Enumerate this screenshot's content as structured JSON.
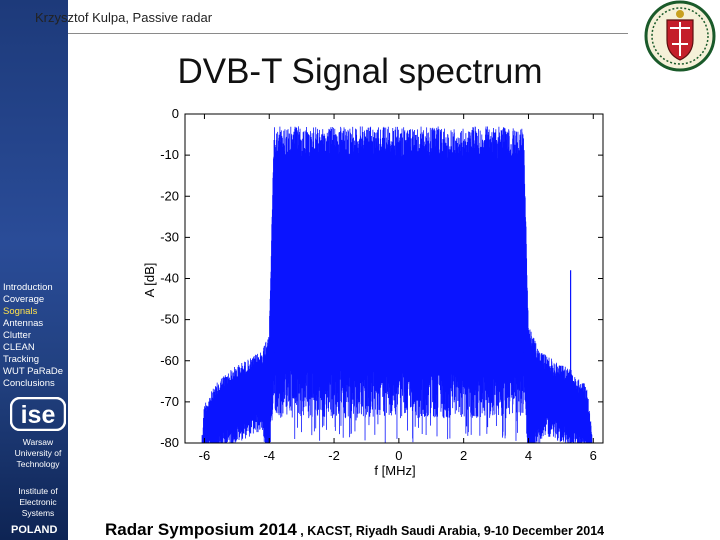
{
  "header": {
    "author_line": "Krzysztof  Kulpa, Passive radar"
  },
  "slide": {
    "title": "DVB-T Signal spectrum"
  },
  "sidebar": {
    "items": [
      {
        "label": "Introduction",
        "active": false
      },
      {
        "label": "Coverage",
        "active": false
      },
      {
        "label": "Sognals",
        "active": true
      },
      {
        "label": "Antennas",
        "active": false
      },
      {
        "label": "Clutter",
        "active": false
      },
      {
        "label": "CLEAN",
        "active": false
      },
      {
        "label": "Tracking",
        "active": false
      },
      {
        "label": "WUT PaRaDe",
        "active": false
      },
      {
        "label": "Conclusions",
        "active": false
      }
    ],
    "logo_text": "ise",
    "university": [
      "Warsaw",
      "University of",
      "Technology"
    ],
    "institute": [
      "Institute of",
      "Electronic",
      "Systems"
    ],
    "country": "POLAND"
  },
  "footer": {
    "event": "Radar Symposium 2014",
    "details": " , KACST, Riyadh  Saudi Arabia,  9-10 December 2014"
  },
  "colors": {
    "sidebar": "#2a4c98",
    "spectrum": "#0a14ff",
    "nav_active": "#ffe14d"
  },
  "chart_data": {
    "type": "line",
    "xlabel": "f [MHz]",
    "ylabel": "A [dB]",
    "xlim": [
      -6.6,
      6.3
    ],
    "ylim": [
      -80,
      0
    ],
    "xticks": [
      "-6",
      "-4",
      "-2",
      "0",
      "2",
      "4",
      "6"
    ],
    "yticks": [
      "0",
      "-10",
      "-20",
      "-30",
      "-40",
      "-50",
      "-60",
      "-70",
      "-80"
    ],
    "grid": false,
    "series": [
      {
        "envelope_top": [
          [
            -6.1,
            -80
          ],
          [
            -6.0,
            -70
          ],
          [
            -5.5,
            -64
          ],
          [
            -5.0,
            -61
          ],
          [
            -4.5,
            -59
          ],
          [
            -4.2,
            -57
          ],
          [
            -4.0,
            -52
          ],
          [
            -3.85,
            -3
          ],
          [
            3.85,
            -3
          ],
          [
            4.0,
            -51
          ],
          [
            4.3,
            -57
          ],
          [
            4.8,
            -60
          ],
          [
            5.3,
            -62
          ],
          [
            5.8,
            -66
          ],
          [
            6.0,
            -80
          ]
        ],
        "envelope_base": [
          [
            -6.1,
            -80
          ],
          [
            -5.0,
            -75
          ],
          [
            -4.2,
            -72
          ],
          [
            -4.1,
            -80
          ],
          [
            -4.0,
            -80
          ],
          [
            -3.85,
            -62
          ],
          [
            3.85,
            -62
          ],
          [
            4.0,
            -80
          ],
          [
            4.5,
            -73
          ],
          [
            5.5,
            -77
          ],
          [
            6.0,
            -80
          ]
        ],
        "spur": {
          "f": 5.3,
          "level": -38
        }
      }
    ]
  }
}
